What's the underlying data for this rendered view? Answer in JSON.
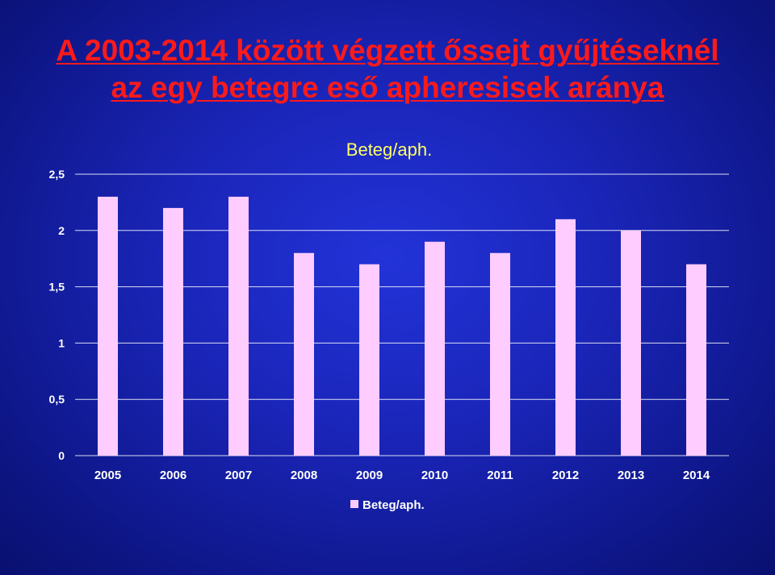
{
  "slide": {
    "title_line1": "A 2003-2014 között végzett őssejt gyűjtéseknél",
    "title_line2": "az egy betegre eső apheresisek aránya"
  },
  "colors": {
    "background": "#1a25b8",
    "title": "#ff1a1a",
    "bar": "#ffccff",
    "chart_title": "#ffff66",
    "labels": "#ffffff",
    "gridlines": "#ffffff"
  },
  "chart_data": {
    "type": "bar",
    "title": "Beteg/aph.",
    "categories": [
      "2005",
      "2006",
      "2007",
      "2008",
      "2009",
      "2010",
      "2011",
      "2012",
      "2013",
      "2014"
    ],
    "series": [
      {
        "name": "Beteg/aph.",
        "values": [
          2.3,
          2.2,
          2.3,
          1.8,
          1.7,
          1.9,
          1.8,
          2.1,
          2.0,
          1.7
        ]
      }
    ],
    "ylim": [
      0,
      2.5
    ],
    "yticks": [
      0,
      0.5,
      1,
      1.5,
      2,
      2.5
    ],
    "ytick_labels": [
      "0",
      "0,5",
      "1",
      "1,5",
      "2",
      "2,5"
    ],
    "grid": true,
    "legend": "bottom",
    "xlabel": "",
    "ylabel": ""
  }
}
